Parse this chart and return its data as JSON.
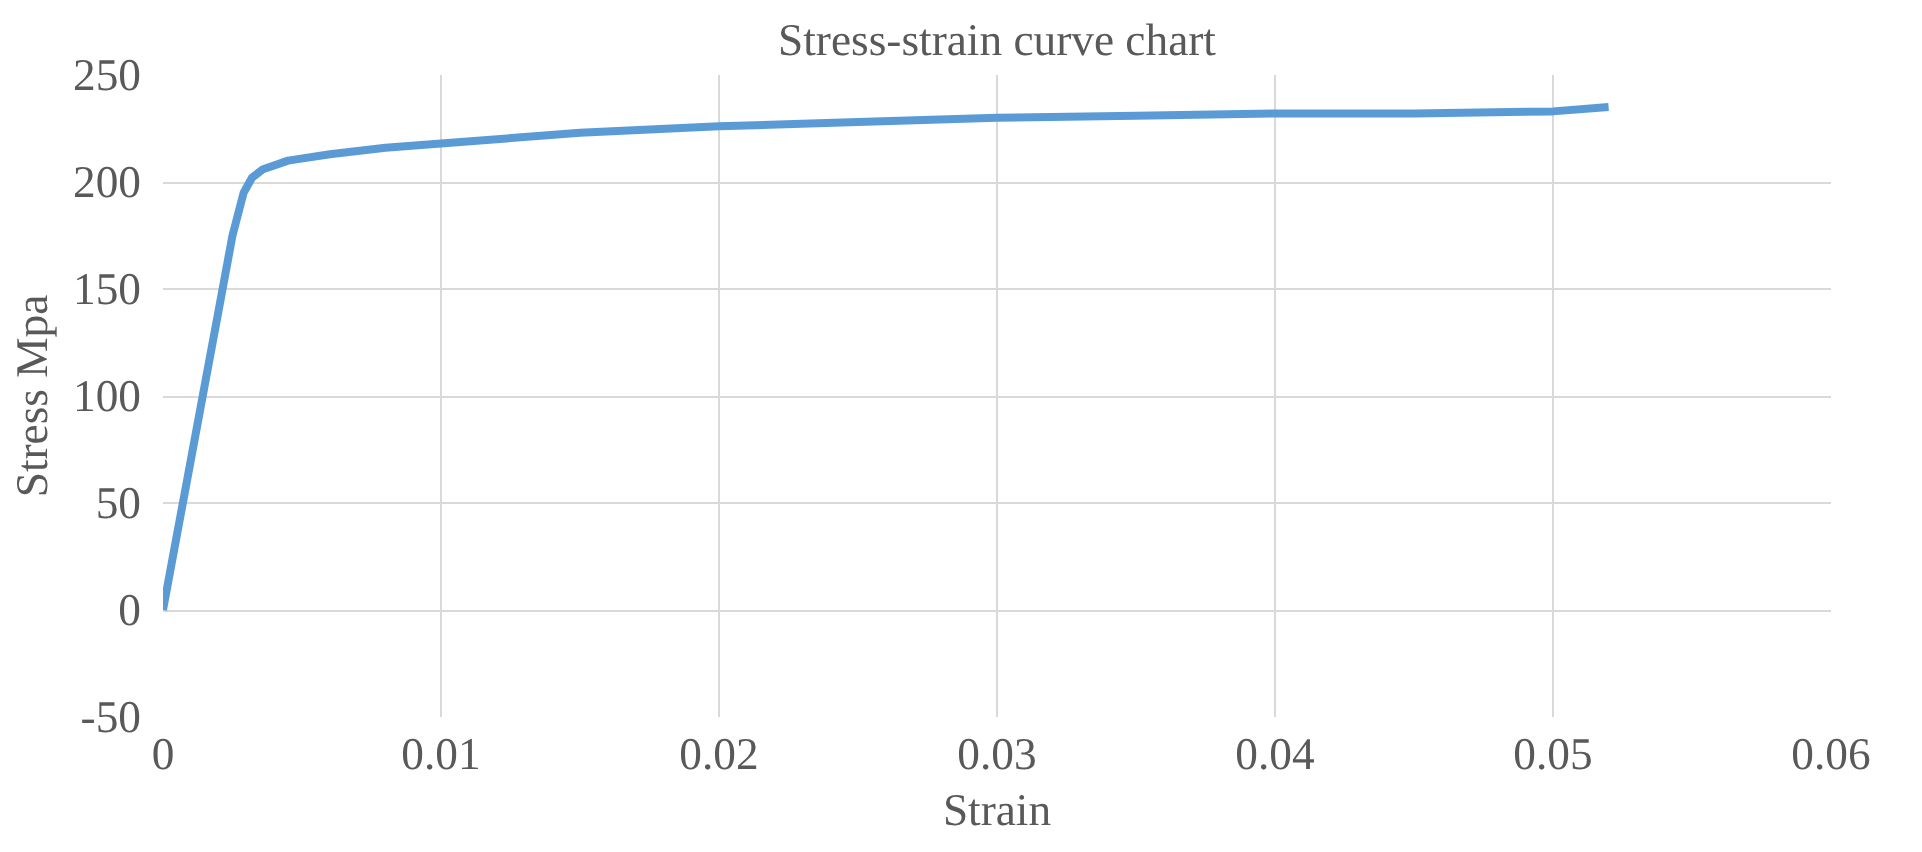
{
  "chart_data": {
    "type": "line",
    "title": "Stress-strain curve chart",
    "xlabel": "Strain",
    "ylabel": "Stress Mpa",
    "x": [
      0,
      0.0005,
      0.001,
      0.0015,
      0.002,
      0.0025,
      0.0029,
      0.0032,
      0.0036,
      0.0045,
      0.006,
      0.008,
      0.01,
      0.015,
      0.02,
      0.025,
      0.03,
      0.035,
      0.04,
      0.045,
      0.05,
      0.052
    ],
    "series": [
      {
        "color": "#5b9bd5",
        "values": [
          0,
          35,
          70,
          105,
          140,
          175,
          195,
          202,
          206,
          210,
          213,
          216,
          218,
          223,
          226,
          228,
          230,
          231,
          232,
          232,
          233,
          235
        ]
      }
    ],
    "xlim": [
      0,
      0.06
    ],
    "ylim": [
      -50,
      250
    ],
    "xticks": [
      0,
      0.01,
      0.02,
      0.03,
      0.04,
      0.05,
      0.06
    ],
    "yticks": [
      -50,
      0,
      50,
      100,
      150,
      200,
      250
    ],
    "grid": true,
    "marker": "none",
    "line_style": "solid"
  }
}
